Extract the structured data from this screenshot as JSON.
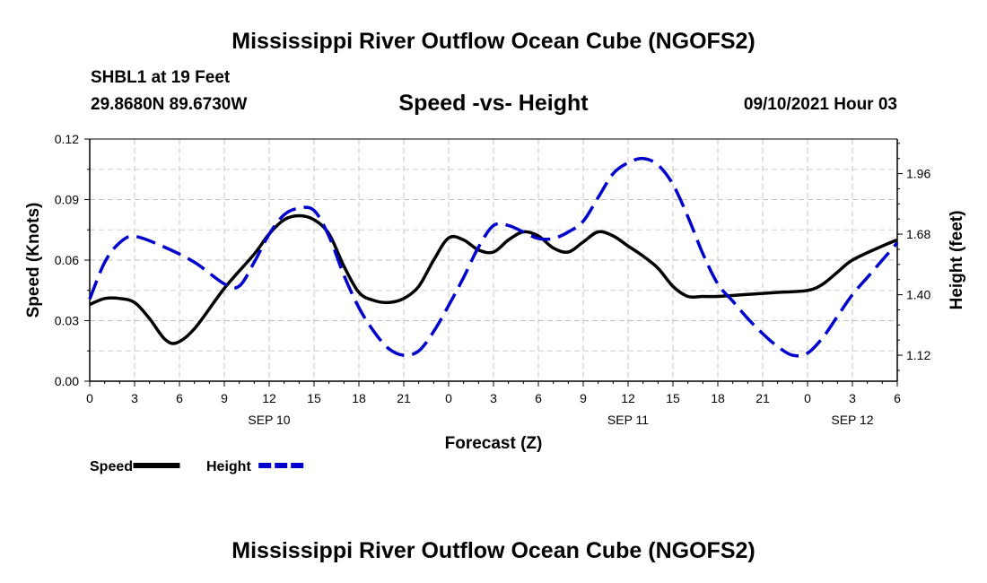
{
  "header": {
    "title": "Mississippi River Outflow Ocean Cube (NGOFS2)",
    "station": "SHBL1 at 19 Feet",
    "coords": "29.8680N  89.6730W",
    "subtitle": "Speed -vs- Height",
    "datetime": "09/10/2021 Hour 03"
  },
  "footer": {
    "title": "Mississippi River Outflow Ocean Cube (NGOFS2)"
  },
  "chart_data": {
    "type": "line",
    "title": "Speed -vs- Height",
    "xlabel": "Forecast (Z)",
    "ylabel": "Speed (Knots)",
    "y2label": "Height (feet)",
    "xlim": [
      0,
      54
    ],
    "ylim": [
      0,
      0.12
    ],
    "y2lim": [
      1.0,
      2.12
    ],
    "x_ticks": [
      0,
      3,
      6,
      9,
      12,
      15,
      18,
      21,
      24,
      27,
      30,
      33,
      36,
      39,
      42,
      45,
      48,
      51,
      54
    ],
    "x_tick_labels": [
      "0",
      "3",
      "6",
      "9",
      "12",
      "15",
      "18",
      "21",
      "0",
      "3",
      "6",
      "9",
      "12",
      "15",
      "18",
      "21",
      "0",
      "3",
      "6"
    ],
    "date_labels": [
      {
        "hour": 12,
        "label": "SEP 10"
      },
      {
        "hour": 36,
        "label": "SEP 11"
      },
      {
        "hour": 51,
        "label": "SEP 12"
      }
    ],
    "y_ticks": [
      0,
      0.03,
      0.06,
      0.09,
      0.12
    ],
    "y_tick_labels": [
      "0.00",
      "0.03",
      "0.06",
      "0.09",
      "0.12"
    ],
    "y2_ticks": [
      1.12,
      1.4,
      1.68,
      1.96
    ],
    "y2_tick_labels": [
      "1.12",
      "1.40",
      "1.68",
      "1.96"
    ],
    "grid": true,
    "legend": {
      "placement": "bottom-left"
    },
    "series": [
      {
        "name": "Speed",
        "axis": "left",
        "color": "#000000",
        "style": "solid",
        "x": [
          0,
          1,
          2,
          3,
          4,
          5,
          5.8,
          7,
          9,
          11,
          12,
          13,
          14,
          15,
          16,
          17,
          18,
          19,
          20,
          21,
          22,
          23,
          24,
          25,
          26,
          27,
          28,
          29,
          30,
          31,
          32,
          33,
          34,
          35,
          36,
          37,
          38,
          39,
          40,
          41,
          42,
          44,
          46,
          48,
          49,
          50,
          51,
          53,
          54
        ],
        "values": [
          0.038,
          0.041,
          0.041,
          0.039,
          0.031,
          0.021,
          0.019,
          0.026,
          0.046,
          0.063,
          0.073,
          0.08,
          0.082,
          0.08,
          0.073,
          0.057,
          0.044,
          0.04,
          0.039,
          0.041,
          0.047,
          0.06,
          0.071,
          0.07,
          0.065,
          0.064,
          0.07,
          0.074,
          0.072,
          0.066,
          0.064,
          0.069,
          0.074,
          0.072,
          0.067,
          0.062,
          0.056,
          0.047,
          0.042,
          0.042,
          0.042,
          0.043,
          0.044,
          0.045,
          0.048,
          0.054,
          0.06,
          0.067,
          0.07
        ]
      },
      {
        "name": "Height",
        "axis": "right",
        "color": "#0000cc",
        "style": "dashed",
        "x": [
          0,
          1,
          2,
          3,
          5,
          7,
          9,
          10,
          11,
          12,
          13,
          14,
          15,
          16,
          17,
          18,
          19,
          20,
          21,
          22,
          23,
          24,
          25,
          26,
          27,
          28,
          29,
          30,
          31,
          32,
          33,
          34,
          35,
          36,
          37,
          38,
          39,
          40,
          41,
          42,
          43,
          44,
          45,
          46,
          47,
          48,
          49,
          50,
          51,
          52,
          53,
          54
        ],
        "values": [
          1.38,
          1.55,
          1.64,
          1.67,
          1.62,
          1.55,
          1.45,
          1.44,
          1.55,
          1.68,
          1.77,
          1.8,
          1.79,
          1.67,
          1.49,
          1.34,
          1.23,
          1.15,
          1.12,
          1.14,
          1.23,
          1.35,
          1.48,
          1.62,
          1.72,
          1.72,
          1.69,
          1.66,
          1.66,
          1.69,
          1.74,
          1.85,
          1.96,
          2.01,
          2.03,
          2.0,
          1.91,
          1.76,
          1.59,
          1.45,
          1.37,
          1.29,
          1.22,
          1.16,
          1.12,
          1.13,
          1.2,
          1.3,
          1.4,
          1.48,
          1.56,
          1.64
        ]
      }
    ]
  }
}
